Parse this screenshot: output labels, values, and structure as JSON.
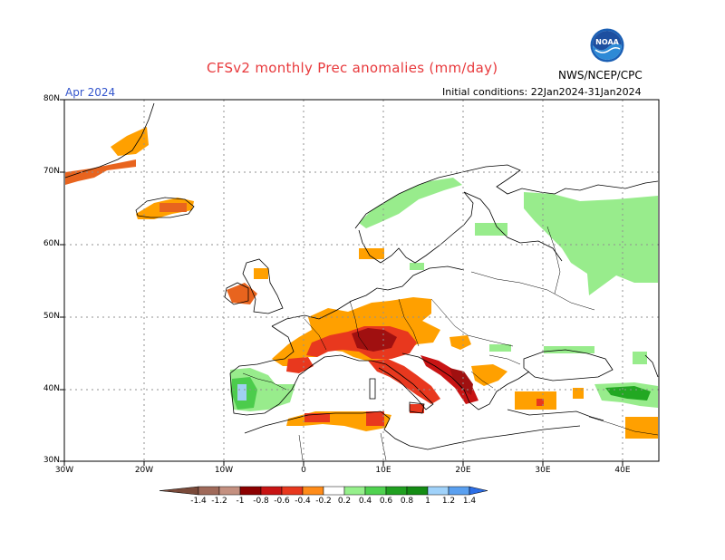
{
  "header": {
    "title": "CFSv2 monthly Prec anomalies (mm/day)",
    "month": "Apr 2024",
    "initial_conditions": "Initial conditions: 22Jan2024-31Jan2024",
    "agency": "NWS/NCEP/CPC",
    "logo_text": "NOAA"
  },
  "axes": {
    "lat_labels": [
      "80N",
      "70N",
      "60N",
      "50N",
      "40N",
      "30N"
    ],
    "lon_labels": [
      "30W",
      "20W",
      "10W",
      "0",
      "10E",
      "20E",
      "30E",
      "40E"
    ]
  },
  "colorbar": {
    "labels": [
      "-1.4",
      "-1.2",
      "-1",
      "-0.8",
      "-0.6",
      "-0.4",
      "-0.2",
      "0.2",
      "0.4",
      "0.6",
      "0.8",
      "1",
      "1.2",
      "1.4"
    ],
    "colors": [
      "#7a4a3a",
      "#a06a5a",
      "#c49080",
      "#8c0000",
      "#c81414",
      "#e8381e",
      "#ff8c1a",
      "#ffffff",
      "#96f08c",
      "#50d250",
      "#20a020",
      "#148c14",
      "#a0d2fa",
      "#5aa0f0",
      "#2c6ee6"
    ]
  },
  "anomaly_colors": {
    "strong_dry": "#a01010",
    "dry": "#d83c1a",
    "moderate_dry": "#e8641e",
    "light_dry": "#ffa000",
    "light_wet": "#98ec8c",
    "wet": "#4ccc4c",
    "strong_wet": "#22a822",
    "very_wet": "#a0d0f0"
  }
}
